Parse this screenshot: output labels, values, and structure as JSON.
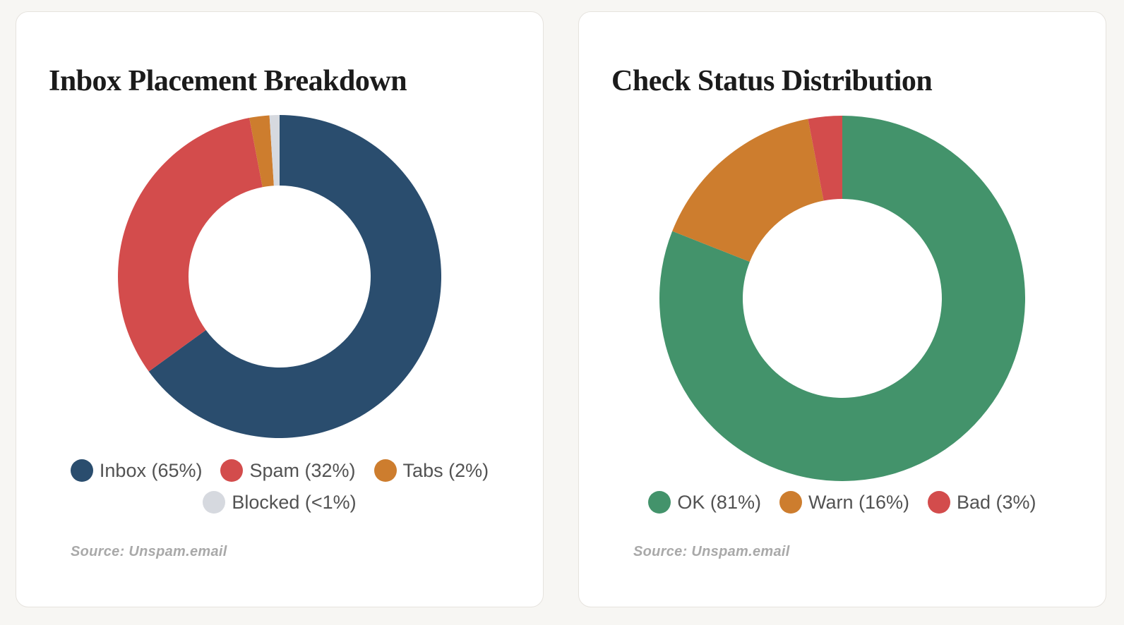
{
  "page": {
    "background_color": "#f7f6f3",
    "card_background_color": "#ffffff",
    "card_border_color": "#e6e3de"
  },
  "chart_data": [
    {
      "type": "pie",
      "donut": true,
      "title": "Inbox Placement Breakdown",
      "labels": [
        "Inbox",
        "Spam",
        "Tabs",
        "Blocked"
      ],
      "values": [
        65,
        32,
        2,
        1
      ],
      "value_display": [
        "65%",
        "32%",
        "2%",
        "<1%"
      ],
      "legend_labels": [
        "Inbox (65%)",
        "Spam (32%)",
        "Tabs (2%)",
        "Blocked (<1%)"
      ],
      "colors": [
        "#2a4d6e",
        "#d34c4c",
        "#cd7d2e",
        "#d6d9df"
      ],
      "start_angle_deg": 0,
      "direction": "clockwise",
      "legend_position": "bottom",
      "source_note": "Source: Unspam.email"
    },
    {
      "type": "pie",
      "donut": true,
      "title": "Check Status Distribution",
      "labels": [
        "OK",
        "Warn",
        "Bad"
      ],
      "values": [
        81,
        16,
        3
      ],
      "value_display": [
        "81%",
        "16%",
        "3%"
      ],
      "legend_labels": [
        "OK (81%)",
        "Warn (16%)",
        "Bad (3%)"
      ],
      "colors": [
        "#43936b",
        "#cd7d2e",
        "#d34c4c"
      ],
      "start_angle_deg": 0,
      "direction": "clockwise",
      "legend_position": "bottom",
      "source_note": "Source: Unspam.email"
    }
  ]
}
